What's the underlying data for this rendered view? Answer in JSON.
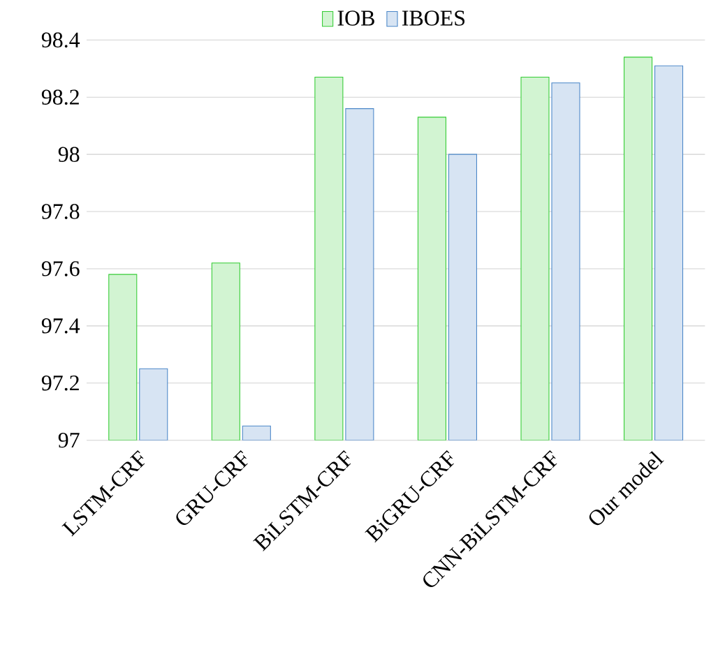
{
  "chart_data": {
    "type": "bar",
    "categories": [
      "LSTM-CRF",
      "GRU-CRF",
      "BiLSTM-CRF",
      "BiGRU-CRF",
      "CNN-BiLSTM-CRF",
      "Our model"
    ],
    "series": [
      {
        "name": "IOB",
        "color": "#33cc33",
        "values": [
          97.58,
          97.62,
          98.27,
          98.13,
          98.27,
          98.34
        ]
      },
      {
        "name": "IBOES",
        "color": "#4a86c8",
        "values": [
          97.25,
          97.05,
          98.16,
          98.0,
          98.25,
          98.31
        ]
      }
    ],
    "ylim": [
      97,
      98.4
    ],
    "yticks": [
      97,
      97.2,
      97.4,
      97.6,
      97.8,
      98,
      98.2,
      98.4
    ],
    "grid": "y",
    "legend": "top"
  }
}
